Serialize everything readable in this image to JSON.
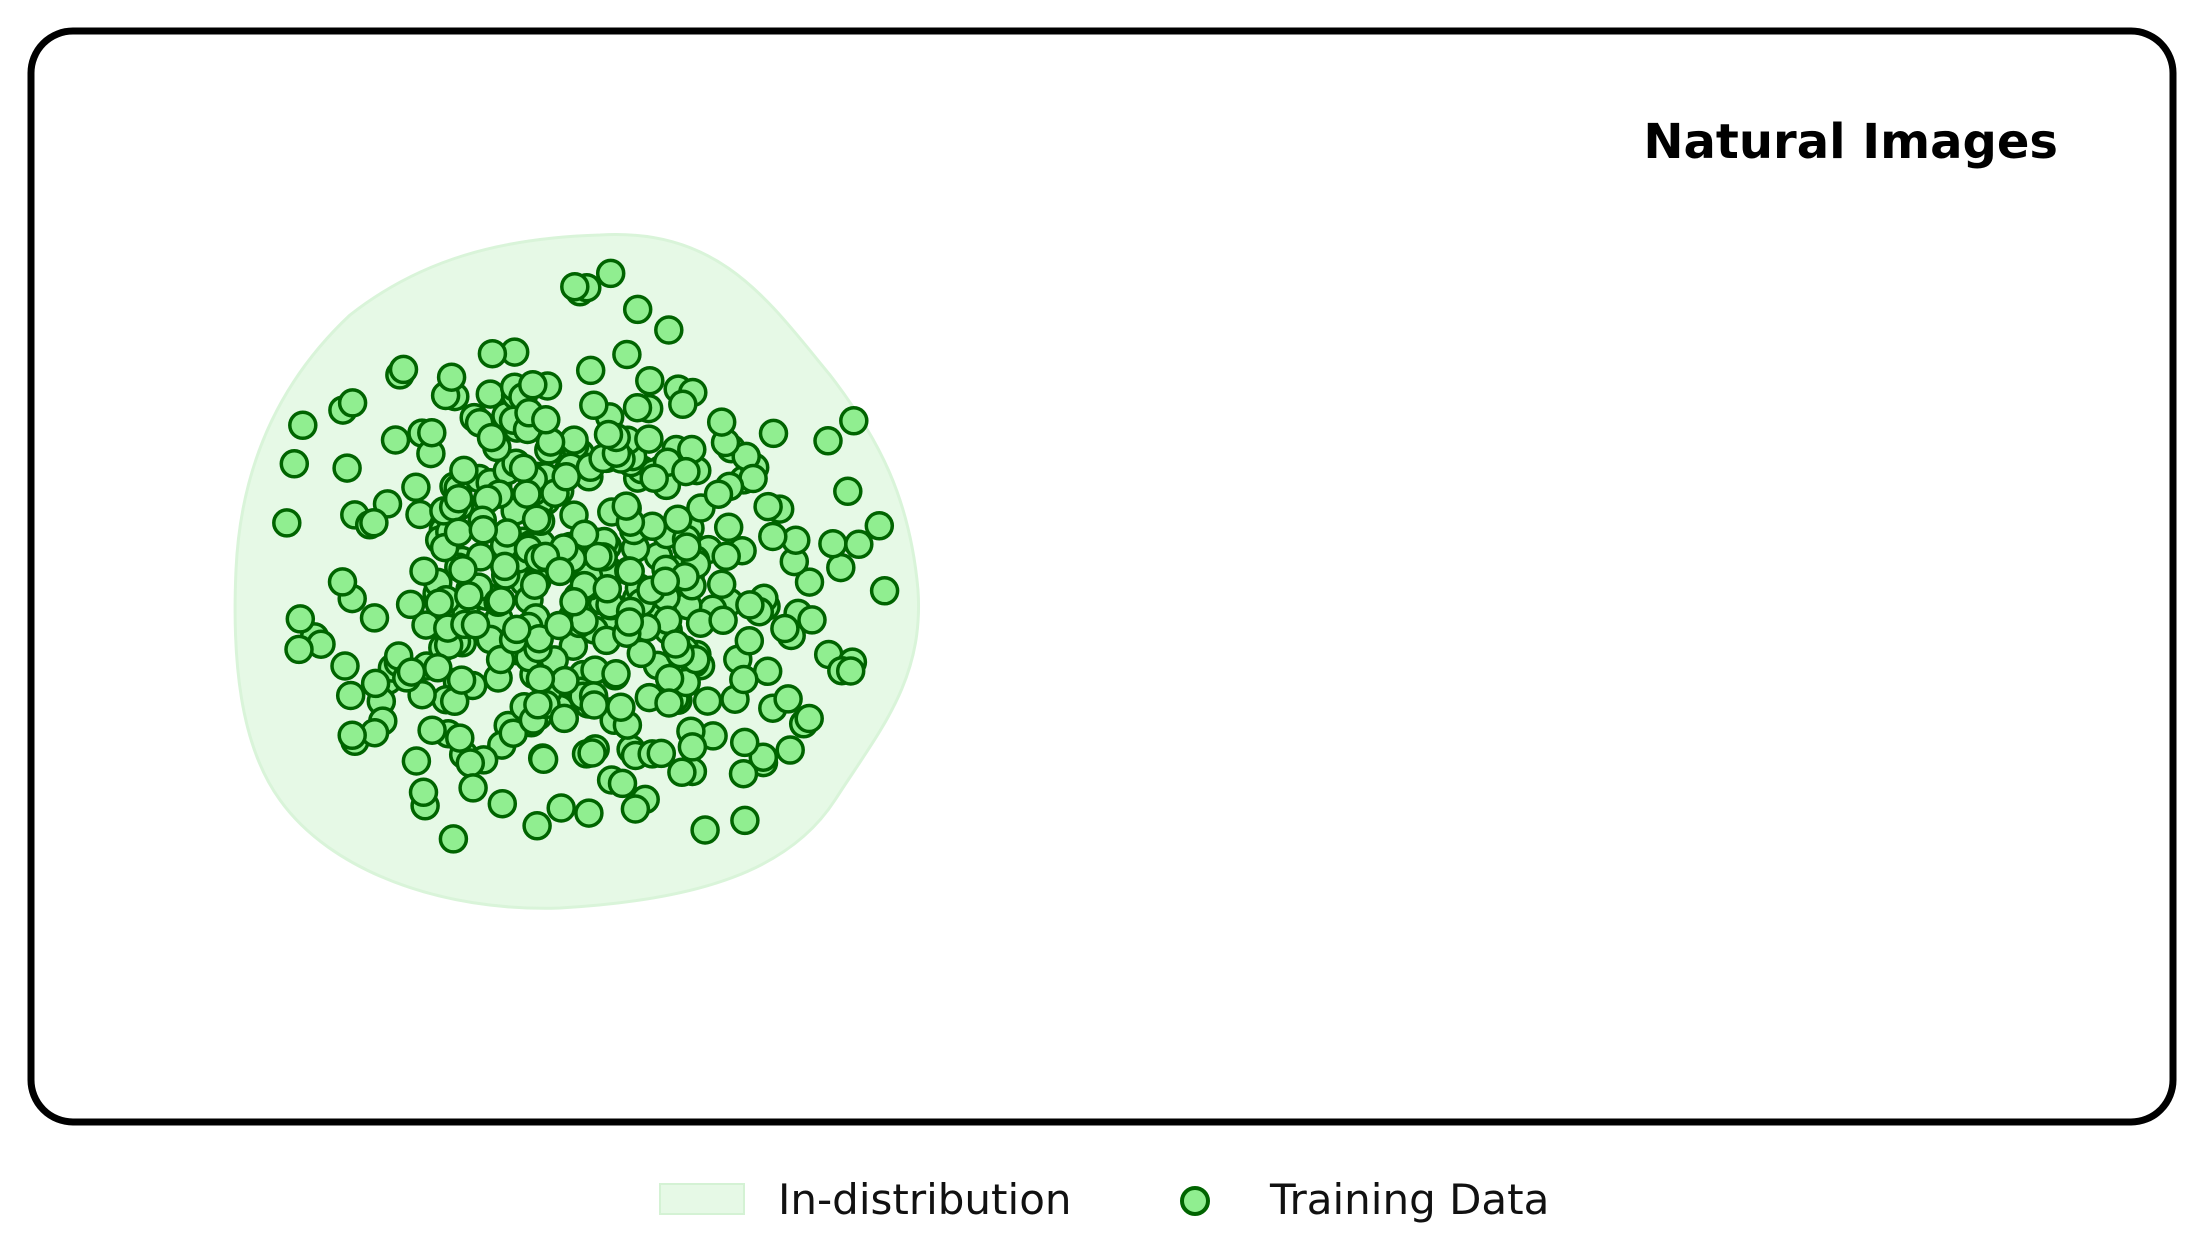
{
  "panel": {
    "title": "Natural Images"
  },
  "legend": {
    "items": [
      {
        "label": "In-distribution",
        "kind": "region",
        "fill": "#e6f9e6",
        "stroke": "#d4f2d4"
      },
      {
        "label": "Training Data",
        "kind": "marker",
        "fill": "#90ee90",
        "stroke": "#006400"
      }
    ]
  },
  "colors": {
    "frame": "#000000",
    "region_fill": "#e6f9e6",
    "region_stroke": "#d9f4d9",
    "point_fill": "#90ee90",
    "point_stroke": "#006400"
  },
  "training_data": {
    "count": 420,
    "seed": 7
  }
}
